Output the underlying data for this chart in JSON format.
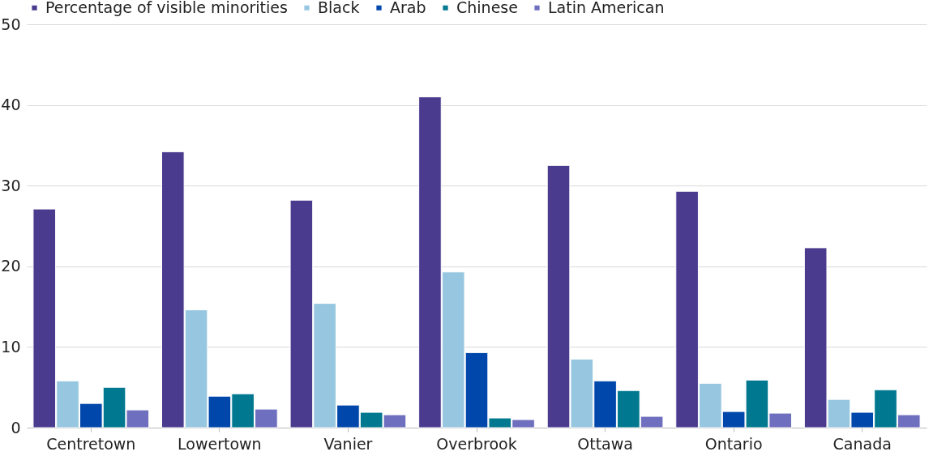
{
  "chart_data": {
    "type": "bar",
    "categories": [
      "Centretown",
      "Lowertown",
      "Vanier",
      "Overbrook",
      "Ottawa",
      "Ontario",
      "Canada"
    ],
    "series": [
      {
        "name": "Percentage of visible minorities",
        "color": "#4b3b8f",
        "values": [
          27.1,
          34.2,
          28.2,
          41.0,
          32.5,
          29.3,
          22.3
        ]
      },
      {
        "name": "Black",
        "color": "#97c7e0",
        "values": [
          5.8,
          14.6,
          15.4,
          19.3,
          8.5,
          5.5,
          3.5
        ]
      },
      {
        "name": "Arab",
        "color": "#0047ab",
        "values": [
          3.0,
          3.9,
          2.8,
          9.3,
          5.8,
          2.0,
          1.9
        ]
      },
      {
        "name": "Chinese",
        "color": "#00788f",
        "values": [
          5.0,
          4.2,
          1.9,
          1.2,
          4.6,
          5.9,
          4.7
        ]
      },
      {
        "name": "Latin American",
        "color": "#6f6fbf",
        "values": [
          2.2,
          2.3,
          1.6,
          1.0,
          1.4,
          1.8,
          1.6
        ]
      }
    ],
    "ylim": [
      0,
      50
    ],
    "yticks": [
      0,
      10,
      20,
      30,
      40,
      50
    ],
    "grid": "y",
    "legend": "top"
  }
}
